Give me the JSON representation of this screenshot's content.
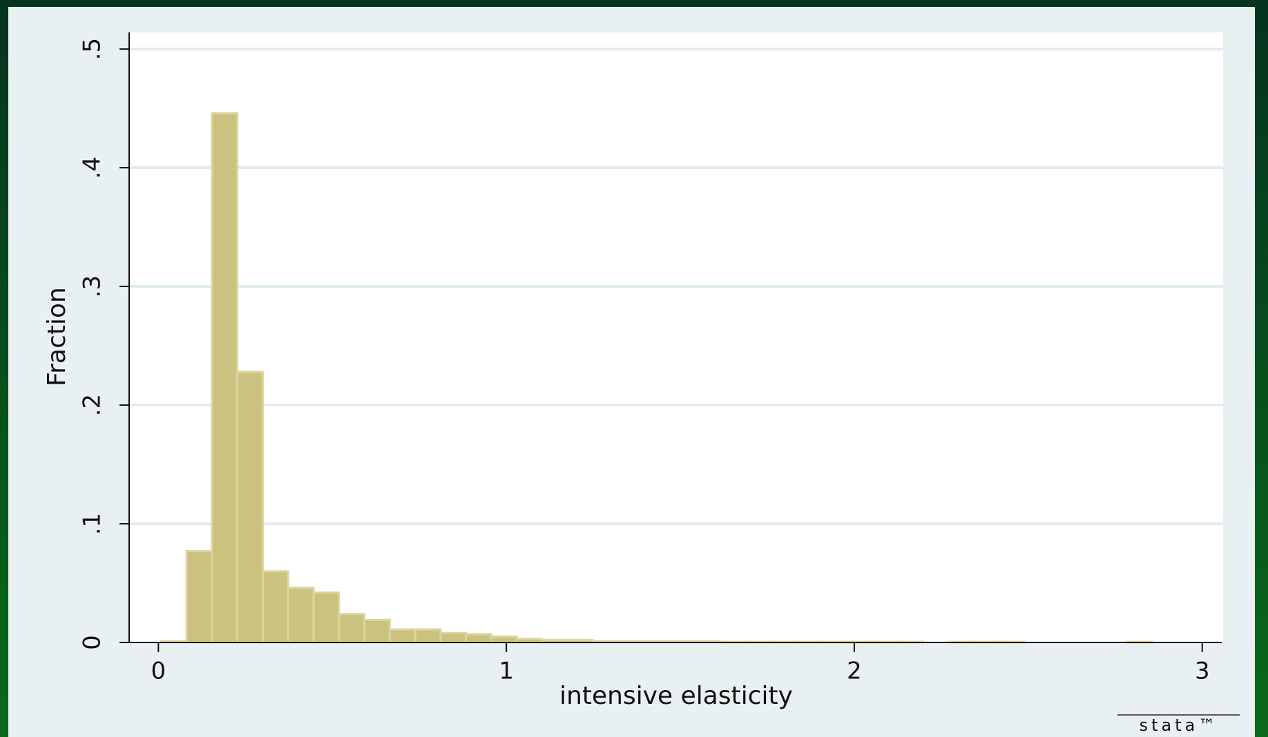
{
  "chart_data": {
    "type": "histogram",
    "x_label": "intensive elasticity",
    "y_label": "Fraction",
    "watermark": "stata™",
    "color": "#cbc27f",
    "edge_color": "#ddd5a0",
    "grid": true,
    "bins": [
      0.008,
      0.081,
      0.154,
      0.227,
      0.3,
      0.373,
      0.446,
      0.519,
      0.592,
      0.665,
      0.738,
      0.811,
      0.884,
      0.957,
      1.03,
      1.103,
      1.176,
      1.249,
      1.322,
      1.395,
      1.468,
      1.541,
      1.614,
      1.687,
      1.76,
      1.833,
      1.906,
      1.979,
      2.052,
      2.125,
      2.198,
      2.271,
      2.344,
      2.417,
      2.49,
      2.563,
      2.636,
      2.709,
      2.782,
      2.855,
      2.928,
      3.001
    ],
    "values": [
      0.001,
      0.077,
      0.446,
      0.228,
      0.06,
      0.046,
      0.042,
      0.024,
      0.019,
      0.011,
      0.011,
      0.008,
      0.007,
      0.005,
      0.003,
      0.002,
      0.002,
      0.001,
      0.001,
      0.001,
      0.001,
      0.001,
      0.0005,
      0.0005,
      0.0005,
      0.0005,
      0.0005,
      0.0005,
      0.0005,
      0.0005,
      0,
      0.0005,
      0.0005,
      0.0005,
      0,
      0,
      0,
      0,
      0.0005,
      0,
      0
    ],
    "xlim": [
      -0.084,
      3.056
    ],
    "xticks": [
      0,
      1,
      2,
      3
    ],
    "ylim": [
      0,
      0.514
    ],
    "yticks": [
      0,
      {
        "value": 0.1,
        "label": ".1"
      },
      {
        "value": 0.2,
        "label": ".2"
      },
      {
        "value": 0.3,
        "label": ".3"
      },
      {
        "value": 0.4,
        "label": ".4"
      },
      {
        "value": 0.5,
        "label": ".5"
      }
    ]
  }
}
